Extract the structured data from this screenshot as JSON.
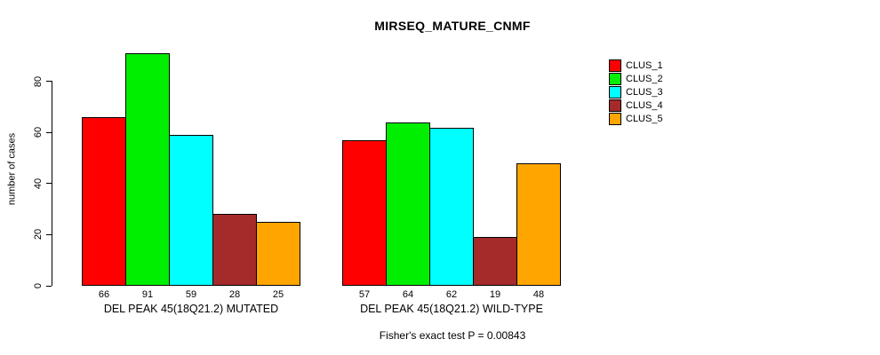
{
  "title": "MIRSEQ_MATURE_CNMF",
  "chart_data": {
    "type": "bar",
    "title": "MIRSEQ_MATURE_CNMF",
    "xlabel": "",
    "ylabel": "number of cases",
    "ylim": [
      0,
      80
    ],
    "yticks": [
      0,
      20,
      40,
      60,
      80
    ],
    "grid": false,
    "legend_position": "top-right",
    "bar_value_labels": true,
    "categories": [
      "DEL PEAK 45(18Q21.2) MUTATED",
      "DEL PEAK 45(18Q21.2) WILD-TYPE"
    ],
    "series": [
      {
        "name": "CLUS_1",
        "color": "#FF0000",
        "values": [
          66,
          57
        ]
      },
      {
        "name": "CLUS_2",
        "color": "#00EE00",
        "values": [
          91,
          64
        ]
      },
      {
        "name": "CLUS_3",
        "color": "#00FFFF",
        "values": [
          59,
          62
        ]
      },
      {
        "name": "CLUS_4",
        "color": "#A52A2A",
        "values": [
          28,
          19
        ]
      },
      {
        "name": "CLUS_5",
        "color": "#FFA500",
        "values": [
          25,
          48
        ]
      }
    ],
    "caption": "Fisher's exact test P = 0.00843",
    "axis_color": "#000000",
    "background_color": "#FFFFFF"
  }
}
